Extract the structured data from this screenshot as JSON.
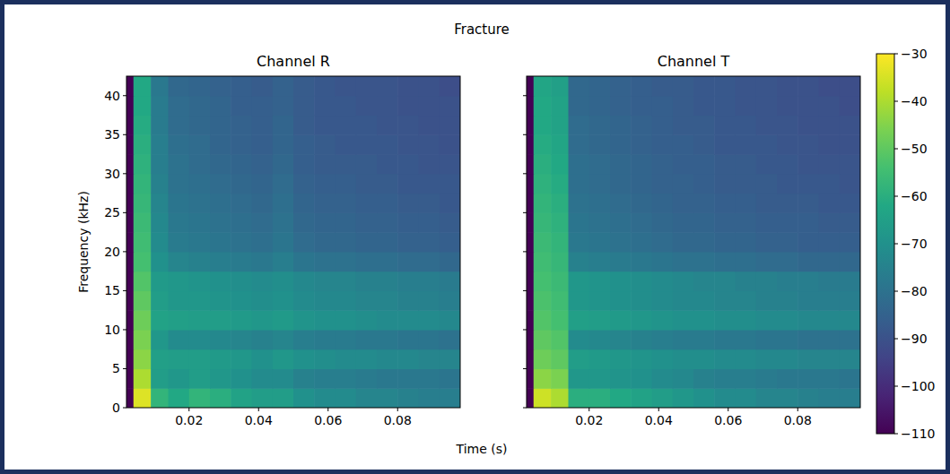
{
  "figure": {
    "title": "Fracture",
    "xlabel": "Time (s)",
    "colorbar": {
      "range": [
        -110,
        -30
      ],
      "ticks": [
        {
          "value": -30,
          "label": "−30"
        },
        {
          "value": -40,
          "label": "−40"
        },
        {
          "value": -50,
          "label": "−50"
        },
        {
          "value": -60,
          "label": "−60"
        },
        {
          "value": -70,
          "label": "−70"
        },
        {
          "value": -80,
          "label": "−80"
        },
        {
          "value": -90,
          "label": "−90"
        },
        {
          "value": -100,
          "label": "−100"
        },
        {
          "value": -110,
          "label": "−110"
        }
      ]
    }
  },
  "chart_data": [
    {
      "type": "heatmap",
      "title": "Channel R",
      "ylabel": "Frequency (kHz)",
      "xlim": [
        0.002,
        0.098
      ],
      "ylim": [
        0,
        42.5
      ],
      "xticks": [
        0.02,
        0.04,
        0.06,
        0.08
      ],
      "yticks": [
        0,
        5,
        10,
        15,
        20,
        25,
        30,
        35,
        40
      ],
      "x_bins": [
        0.002,
        0.004,
        0.009,
        0.014,
        0.02,
        0.026,
        0.032,
        0.038,
        0.044,
        0.05,
        0.056,
        0.062,
        0.068,
        0.074,
        0.08,
        0.086,
        0.092,
        0.098
      ],
      "y_bins": [
        0,
        2.5,
        5,
        7.5,
        10,
        12.5,
        15,
        17.5,
        20,
        22.5,
        25,
        27.5,
        30,
        32.5,
        35,
        37.5,
        40,
        42.5
      ],
      "cells": [
        [
          -110,
          -34,
          -58,
          -62,
          -58,
          -60,
          -64,
          -66,
          -66,
          -70,
          -72,
          -72,
          -74,
          -74,
          -75,
          -76,
          -76
        ],
        [
          -110,
          -40,
          -66,
          -68,
          -66,
          -68,
          -70,
          -72,
          -72,
          -75,
          -76,
          -76,
          -77,
          -78,
          -78,
          -78,
          -79
        ],
        [
          -110,
          -44,
          -65,
          -66,
          -66,
          -67,
          -68,
          -70,
          -68,
          -70,
          -71,
          -72,
          -72,
          -73,
          -73,
          -74,
          -74
        ],
        [
          -110,
          -46,
          -68,
          -72,
          -72,
          -73,
          -74,
          -75,
          -74,
          -76,
          -77,
          -77,
          -78,
          -78,
          -79,
          -79,
          -80
        ],
        [
          -110,
          -48,
          -64,
          -65,
          -66,
          -66,
          -67,
          -68,
          -67,
          -69,
          -70,
          -70,
          -71,
          -72,
          -72,
          -72,
          -73
        ],
        [
          -110,
          -50,
          -66,
          -68,
          -68,
          -69,
          -70,
          -71,
          -70,
          -72,
          -73,
          -73,
          -74,
          -74,
          -75,
          -75,
          -76
        ],
        [
          -110,
          -52,
          -67,
          -68,
          -69,
          -70,
          -71,
          -72,
          -71,
          -73,
          -74,
          -74,
          -75,
          -75,
          -76,
          -76,
          -77
        ],
        [
          -110,
          -54,
          -70,
          -74,
          -75,
          -76,
          -77,
          -78,
          -76,
          -79,
          -80,
          -80,
          -81,
          -81,
          -82,
          -82,
          -83
        ],
        [
          -110,
          -55,
          -72,
          -77,
          -78,
          -79,
          -80,
          -81,
          -79,
          -82,
          -83,
          -83,
          -84,
          -84,
          -85,
          -85,
          -86
        ],
        [
          -110,
          -56,
          -73,
          -78,
          -79,
          -80,
          -81,
          -82,
          -80,
          -83,
          -84,
          -84,
          -85,
          -85,
          -86,
          -86,
          -87
        ],
        [
          -110,
          -57,
          -74,
          -79,
          -80,
          -81,
          -82,
          -83,
          -81,
          -84,
          -85,
          -85,
          -86,
          -86,
          -87,
          -87,
          -88
        ],
        [
          -110,
          -58,
          -75,
          -80,
          -81,
          -82,
          -83,
          -84,
          -82,
          -85,
          -86,
          -86,
          -87,
          -87,
          -88,
          -88,
          -88
        ],
        [
          -110,
          -59,
          -76,
          -80,
          -82,
          -83,
          -84,
          -85,
          -83,
          -86,
          -87,
          -87,
          -87,
          -88,
          -88,
          -89,
          -89
        ],
        [
          -110,
          -60,
          -76,
          -81,
          -82,
          -84,
          -85,
          -86,
          -84,
          -86,
          -87,
          -88,
          -88,
          -88,
          -89,
          -89,
          -90
        ],
        [
          -110,
          -61,
          -77,
          -82,
          -83,
          -84,
          -85,
          -86,
          -84,
          -87,
          -88,
          -88,
          -88,
          -89,
          -89,
          -90,
          -90
        ],
        [
          -110,
          -62,
          -77,
          -82,
          -83,
          -84,
          -86,
          -86,
          -85,
          -87,
          -88,
          -88,
          -89,
          -89,
          -90,
          -90,
          -90
        ],
        [
          -110,
          -62,
          -78,
          -83,
          -84,
          -85,
          -86,
          -87,
          -85,
          -87,
          -88,
          -89,
          -89,
          -89,
          -90,
          -90,
          -91
        ]
      ]
    },
    {
      "type": "heatmap",
      "title": "Channel T",
      "tick_labels": "x",
      "xlim": [
        0.002,
        0.098
      ],
      "ylim": [
        0,
        42.5
      ],
      "xticks": [
        0.02,
        0.04,
        0.06,
        0.08
      ],
      "yticks": [
        0,
        5,
        10,
        15,
        20,
        25,
        30,
        35,
        40
      ],
      "x_bins": [
        0.002,
        0.004,
        0.009,
        0.014,
        0.02,
        0.026,
        0.032,
        0.038,
        0.044,
        0.05,
        0.056,
        0.062,
        0.068,
        0.074,
        0.08,
        0.086,
        0.092,
        0.098
      ],
      "y_bins": [
        0,
        2.5,
        5,
        7.5,
        10,
        12.5,
        15,
        17.5,
        20,
        22.5,
        25,
        27.5,
        30,
        32.5,
        35,
        37.5,
        40,
        42.5
      ],
      "cells": [
        [
          -110,
          -36,
          -40,
          -60,
          -60,
          -62,
          -64,
          -66,
          -68,
          -70,
          -72,
          -72,
          -74,
          -74,
          -75,
          -76,
          -76
        ],
        [
          -110,
          -44,
          -46,
          -68,
          -68,
          -69,
          -70,
          -72,
          -73,
          -75,
          -76,
          -76,
          -77,
          -78,
          -78,
          -78,
          -79
        ],
        [
          -110,
          -48,
          -50,
          -66,
          -67,
          -68,
          -69,
          -70,
          -71,
          -71,
          -72,
          -72,
          -73,
          -73,
          -74,
          -74,
          -74
        ],
        [
          -110,
          -50,
          -52,
          -72,
          -73,
          -74,
          -75,
          -76,
          -77,
          -77,
          -78,
          -78,
          -79,
          -79,
          -80,
          -80,
          -80
        ],
        [
          -110,
          -52,
          -54,
          -65,
          -66,
          -67,
          -68,
          -69,
          -70,
          -70,
          -71,
          -71,
          -72,
          -72,
          -73,
          -73,
          -73
        ],
        [
          -110,
          -53,
          -55,
          -68,
          -69,
          -70,
          -71,
          -72,
          -73,
          -73,
          -74,
          -74,
          -75,
          -75,
          -76,
          -76,
          -76
        ],
        [
          -110,
          -54,
          -56,
          -68,
          -69,
          -70,
          -71,
          -72,
          -73,
          -74,
          -74,
          -75,
          -75,
          -76,
          -76,
          -77,
          -77
        ],
        [
          -110,
          -55,
          -57,
          -75,
          -76,
          -77,
          -78,
          -79,
          -80,
          -80,
          -81,
          -81,
          -82,
          -82,
          -83,
          -83,
          -83
        ],
        [
          -110,
          -56,
          -58,
          -78,
          -79,
          -80,
          -81,
          -82,
          -83,
          -83,
          -84,
          -84,
          -85,
          -85,
          -86,
          -86,
          -86
        ],
        [
          -110,
          -57,
          -59,
          -79,
          -80,
          -81,
          -82,
          -83,
          -84,
          -84,
          -85,
          -85,
          -86,
          -86,
          -86,
          -87,
          -87
        ],
        [
          -110,
          -58,
          -60,
          -80,
          -81,
          -82,
          -83,
          -84,
          -85,
          -85,
          -86,
          -86,
          -87,
          -87,
          -87,
          -88,
          -88
        ],
        [
          -110,
          -59,
          -61,
          -81,
          -82,
          -83,
          -84,
          -85,
          -85,
          -86,
          -87,
          -87,
          -87,
          -88,
          -88,
          -88,
          -89
        ],
        [
          -110,
          -60,
          -62,
          -81,
          -82,
          -83,
          -84,
          -85,
          -86,
          -86,
          -87,
          -87,
          -88,
          -88,
          -89,
          -89,
          -89
        ],
        [
          -110,
          -61,
          -63,
          -82,
          -83,
          -84,
          -85,
          -86,
          -86,
          -87,
          -88,
          -88,
          -88,
          -89,
          -89,
          -90,
          -90
        ],
        [
          -110,
          -62,
          -64,
          -82,
          -83,
          -84,
          -85,
          -86,
          -87,
          -87,
          -88,
          -88,
          -89,
          -89,
          -90,
          -90,
          -90
        ],
        [
          -110,
          -62,
          -64,
          -83,
          -84,
          -85,
          -86,
          -86,
          -87,
          -88,
          -88,
          -89,
          -89,
          -90,
          -90,
          -90,
          -91
        ],
        [
          -110,
          -63,
          -65,
          -83,
          -84,
          -85,
          -86,
          -87,
          -87,
          -88,
          -88,
          -89,
          -89,
          -90,
          -90,
          -91,
          -91
        ]
      ]
    }
  ]
}
